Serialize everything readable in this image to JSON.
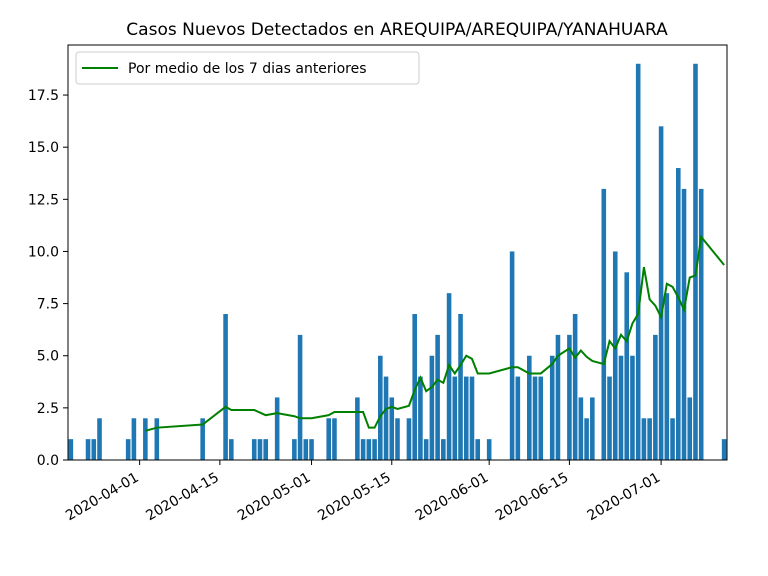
{
  "chart_data": {
    "type": "bar",
    "title": "Casos Nuevos Detectados en AREQUIPA/AREQUIPA/YANAHUARA",
    "xlabel": "",
    "ylabel": "",
    "x_range": [
      "2020-03-20",
      "2020-07-12"
    ],
    "ylim": [
      0,
      19.9
    ],
    "grid": false,
    "legend_placement": "top-left",
    "colors": {
      "bars": "#1f77b4",
      "line": "#008000"
    },
    "x_ticks": [
      "2020-04-01",
      "2020-04-15",
      "2020-05-01",
      "2020-05-15",
      "2020-06-01",
      "2020-06-15",
      "2020-07-01"
    ],
    "y_ticks": [
      "0.0",
      "2.5",
      "5.0",
      "7.5",
      "10.0",
      "12.5",
      "15.0",
      "17.5"
    ],
    "y_tick_values": [
      0,
      2.5,
      5,
      7.5,
      10,
      12.5,
      15,
      17.5
    ],
    "series": [
      {
        "kind": "bar",
        "dates": [
          "2020-03-20",
          "2020-03-23",
          "2020-03-24",
          "2020-03-25",
          "2020-03-30",
          "2020-03-31",
          "2020-04-02",
          "2020-04-04",
          "2020-04-12",
          "2020-04-16",
          "2020-04-17",
          "2020-04-21",
          "2020-04-22",
          "2020-04-23",
          "2020-04-25",
          "2020-04-28",
          "2020-04-29",
          "2020-04-30",
          "2020-05-01",
          "2020-05-04",
          "2020-05-05",
          "2020-05-09",
          "2020-05-10",
          "2020-05-11",
          "2020-05-12",
          "2020-05-13",
          "2020-05-14",
          "2020-05-15",
          "2020-05-16",
          "2020-05-18",
          "2020-05-19",
          "2020-05-20",
          "2020-05-21",
          "2020-05-22",
          "2020-05-23",
          "2020-05-24",
          "2020-05-25",
          "2020-05-26",
          "2020-05-27",
          "2020-05-28",
          "2020-05-29",
          "2020-05-30",
          "2020-06-01",
          "2020-06-05",
          "2020-06-06",
          "2020-06-08",
          "2020-06-09",
          "2020-06-10",
          "2020-06-12",
          "2020-06-13",
          "2020-06-15",
          "2020-06-16",
          "2020-06-17",
          "2020-06-18",
          "2020-06-19",
          "2020-06-21",
          "2020-06-22",
          "2020-06-23",
          "2020-06-24",
          "2020-06-25",
          "2020-06-26",
          "2020-06-27",
          "2020-06-28",
          "2020-06-29",
          "2020-06-30",
          "2020-07-01",
          "2020-07-02",
          "2020-07-03",
          "2020-07-04",
          "2020-07-05",
          "2020-07-06",
          "2020-07-07",
          "2020-07-08",
          "2020-07-12"
        ],
        "values": [
          1,
          1,
          1,
          2,
          1,
          2,
          2,
          2,
          2,
          7,
          1,
          1,
          1,
          1,
          3,
          1,
          6,
          1,
          1,
          2,
          2,
          3,
          1,
          1,
          1,
          5,
          4,
          3,
          2,
          2,
          7,
          4,
          1,
          5,
          6,
          1,
          8,
          4,
          7,
          4,
          4,
          1,
          1,
          10,
          4,
          5,
          4,
          4,
          5,
          6,
          6,
          7,
          3,
          2,
          3,
          13,
          4,
          10,
          5,
          9,
          5,
          19,
          2,
          2,
          6,
          16,
          8,
          2,
          14,
          13,
          3,
          19,
          13,
          1
        ]
      },
      {
        "kind": "line",
        "name": "Por medio de los 7 dias anteriores",
        "dates": [
          "2020-04-02",
          "2020-04-04",
          "2020-04-12",
          "2020-04-16",
          "2020-04-17",
          "2020-04-21",
          "2020-04-23",
          "2020-04-25",
          "2020-04-28",
          "2020-04-29",
          "2020-04-30",
          "2020-05-01",
          "2020-05-04",
          "2020-05-05",
          "2020-05-09",
          "2020-05-10",
          "2020-05-11",
          "2020-05-12",
          "2020-05-13",
          "2020-05-14",
          "2020-05-15",
          "2020-05-16",
          "2020-05-18",
          "2020-05-19",
          "2020-05-20",
          "2020-05-21",
          "2020-05-22",
          "2020-05-23",
          "2020-05-24",
          "2020-05-25",
          "2020-05-26",
          "2020-05-27",
          "2020-05-28",
          "2020-05-29",
          "2020-05-30",
          "2020-06-01",
          "2020-06-05",
          "2020-06-06",
          "2020-06-08",
          "2020-06-09",
          "2020-06-10",
          "2020-06-12",
          "2020-06-13",
          "2020-06-15",
          "2020-06-16",
          "2020-06-17",
          "2020-06-18",
          "2020-06-19",
          "2020-06-21",
          "2020-06-22",
          "2020-06-23",
          "2020-06-24",
          "2020-06-25",
          "2020-06-26",
          "2020-06-27",
          "2020-06-28",
          "2020-06-29",
          "2020-06-30",
          "2020-07-01",
          "2020-07-02",
          "2020-07-03",
          "2020-07-04",
          "2020-07-05",
          "2020-07-06",
          "2020-07-07",
          "2020-07-08",
          "2020-07-12"
        ],
        "values": [
          1.4,
          1.55,
          1.7,
          2.55,
          2.4,
          2.4,
          2.15,
          2.25,
          2.1,
          2.0,
          2.0,
          2.0,
          2.15,
          2.3,
          2.3,
          2.3,
          1.55,
          1.55,
          2.1,
          2.45,
          2.55,
          2.45,
          2.6,
          3.35,
          3.95,
          3.3,
          3.5,
          3.85,
          3.7,
          4.55,
          4.15,
          4.55,
          5.0,
          4.85,
          4.15,
          4.15,
          4.45,
          4.45,
          4.15,
          4.15,
          4.15,
          4.6,
          5.0,
          5.35,
          4.9,
          5.25,
          4.95,
          4.75,
          4.6,
          5.7,
          5.35,
          6.0,
          5.7,
          6.55,
          7.0,
          9.25,
          7.7,
          7.4,
          6.85,
          8.45,
          8.3,
          7.8,
          7.2,
          8.75,
          8.85,
          10.7,
          9.35
        ]
      }
    ]
  }
}
